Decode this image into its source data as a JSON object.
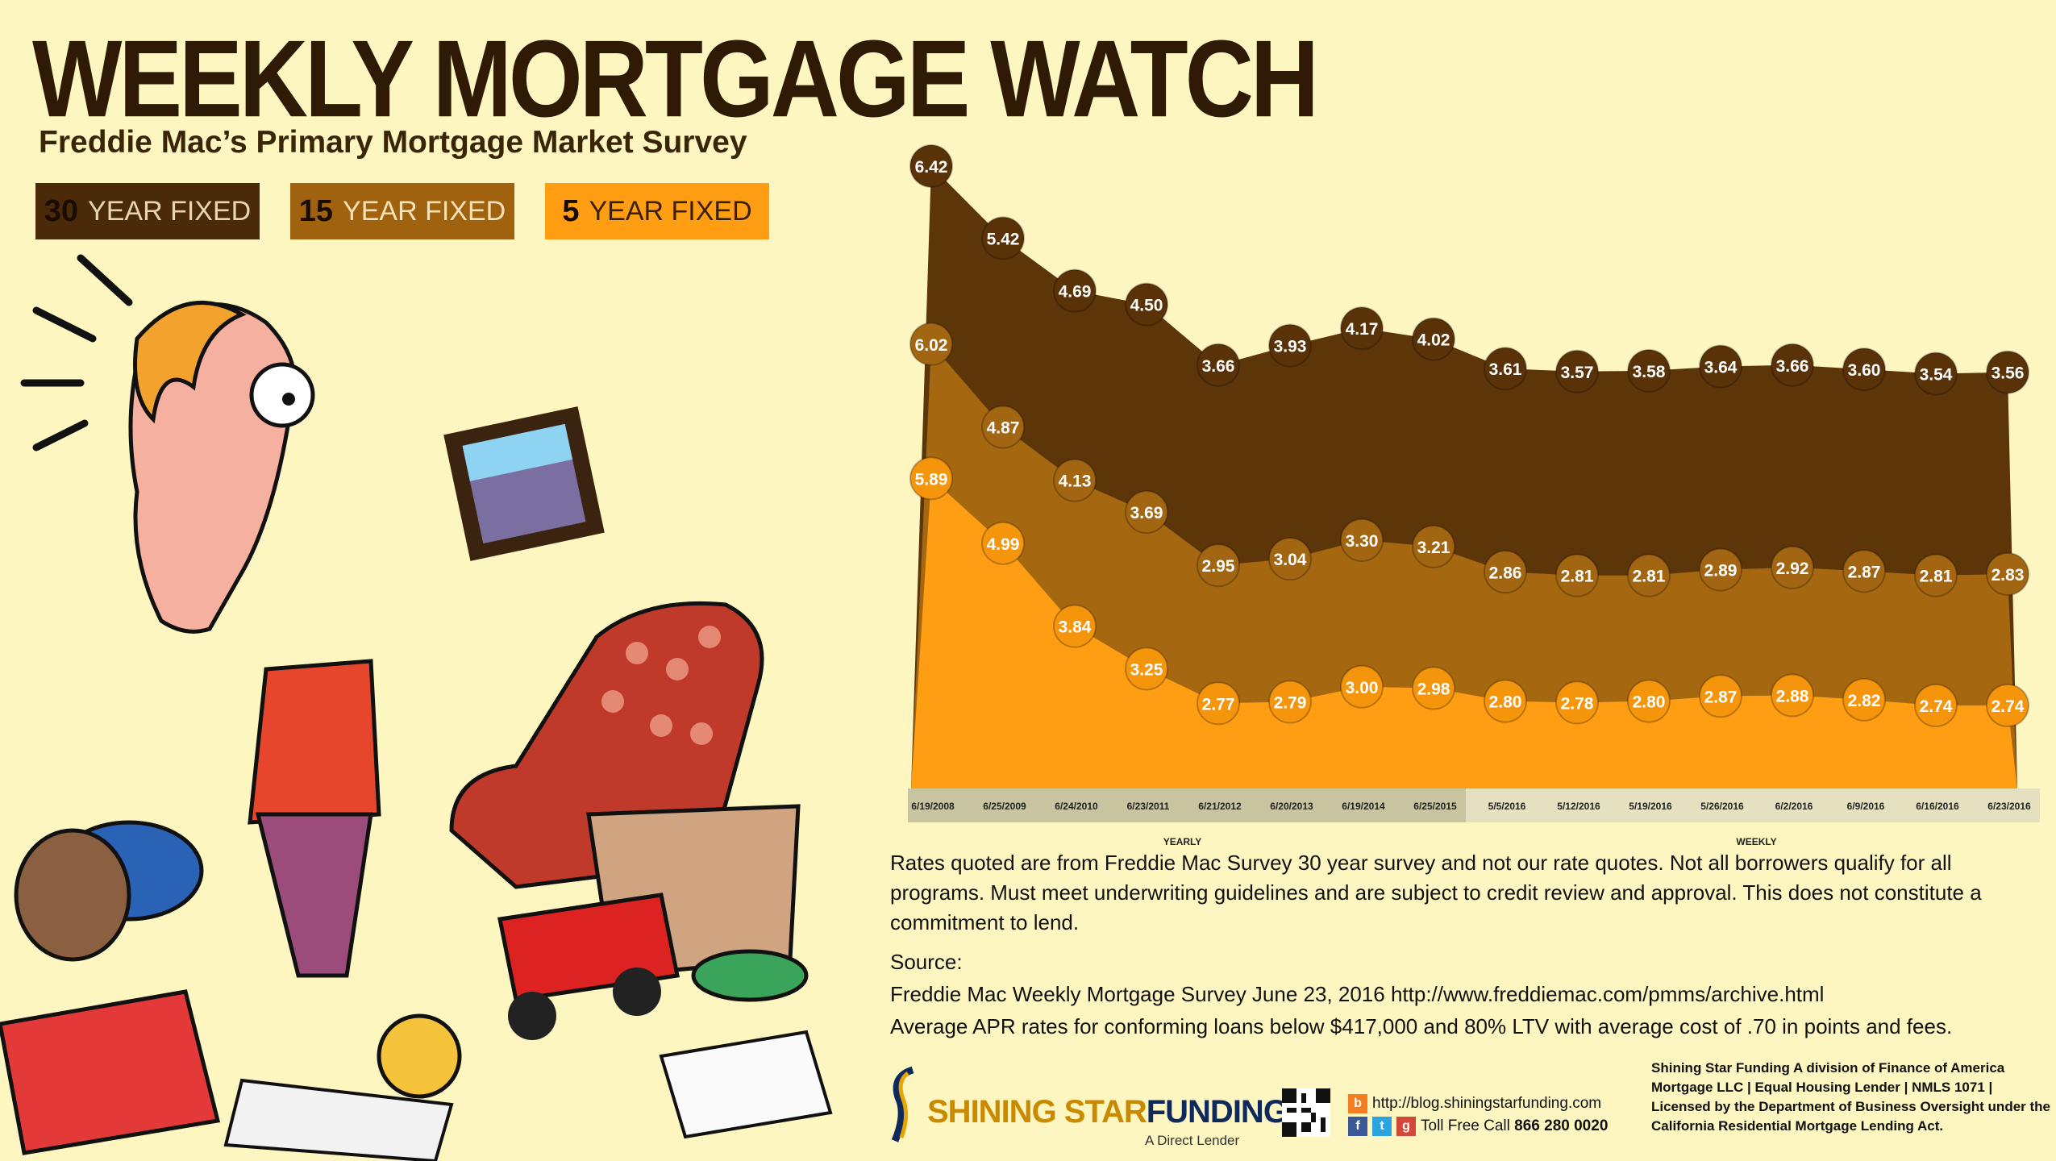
{
  "header": {
    "title": "WEEKLY MORTGAGE WATCH",
    "subtitle": "Freddie Mac’s Primary Mortgage Market Survey"
  },
  "legend": [
    {
      "num": "30",
      "label": "YEAR FIXED",
      "color": "#4a2a08"
    },
    {
      "num": "15",
      "label": "YEAR FIXED",
      "color": "#a0620e"
    },
    {
      "num": "5",
      "label": "YEAR FIXED",
      "color": "#ff9e12"
    }
  ],
  "chart_data": {
    "type": "area",
    "categories": [
      "6/19/2008",
      "6/25/2009",
      "6/24/2010",
      "6/23/2011",
      "6/21/2012",
      "6/20/2013",
      "6/19/2014",
      "6/25/2015",
      "5/5/2016",
      "5/12/2016",
      "5/19/2016",
      "5/26/2016",
      "6/2/2016",
      "6/9/2016",
      "6/16/2016",
      "6/23/2016"
    ],
    "group_labels": [
      {
        "label": "YEARLY",
        "span": [
          0,
          7
        ]
      },
      {
        "label": "WEEKLY",
        "span": [
          8,
          15
        ]
      }
    ],
    "series": [
      {
        "name": "30 YEAR FIXED",
        "color": "#5c3509",
        "labels": [
          "6.42",
          "5.42",
          "4.69",
          "4.50",
          "3.66",
          "3.93",
          "4.17",
          "4.02",
          "3.61",
          "3.57",
          "3.58",
          "3.64",
          "3.66",
          "3.60",
          "3.54",
          "3.56"
        ],
        "values": [
          6.42,
          5.42,
          4.69,
          4.5,
          3.66,
          3.93,
          4.17,
          4.02,
          3.61,
          3.57,
          3.58,
          3.64,
          3.66,
          3.6,
          3.54,
          3.56
        ]
      },
      {
        "name": "15 YEAR FIXED",
        "color": "#a56810",
        "labels": [
          "6.02",
          "4.87",
          "4.13",
          "3.69",
          "2.95",
          "3.04",
          "3.30",
          "3.21",
          "2.86",
          "2.81",
          "2.81",
          "2.89",
          "2.92",
          "2.87",
          "2.81",
          "2.83"
        ],
        "values": [
          6.02,
          4.87,
          4.13,
          3.69,
          2.95,
          3.04,
          3.3,
          3.21,
          2.86,
          2.81,
          2.81,
          2.89,
          2.92,
          2.87,
          2.81,
          2.83
        ]
      },
      {
        "name": "5 YEAR FIXED",
        "color": "#ff9e12",
        "labels": [
          "5.89",
          "4.99",
          "3.84",
          "3.25",
          "2.77",
          "2.79",
          "3.00",
          "2.98",
          "2.80",
          "2.78",
          "2.80",
          "2.87",
          "2.88",
          "2.82",
          "2.74",
          "2.74"
        ],
        "values": [
          5.89,
          4.99,
          3.84,
          3.25,
          2.77,
          2.79,
          3.0,
          2.98,
          2.8,
          2.78,
          2.8,
          2.87,
          2.88,
          2.82,
          2.74,
          2.74
        ]
      }
    ]
  },
  "disclaimer": "Rates quoted are from Freddie Mac Survey 30 year survey and not our rate quotes. Not all borrowers qualify for all programs. Must meet underwriting guidelines and are subject to credit review and approval. This does not constitute a commitment to lend.",
  "source": {
    "heading": "Source:",
    "line1": "Freddie Mac Weekly Mortgage Survey June 23, 2016 http://www.freddiemac.com/pmms/archive.html",
    "line2": "Average APR rates for conforming loans below $417,000 and 80% LTV with average cost of .70 in points and fees."
  },
  "footer": {
    "brand_a": "SHINING ",
    "brand_b": "STAR",
    "brand_c": "FUNDING",
    "brand_tagline": "A Direct Lender",
    "blog": "http://blog.shiningstarfunding.com",
    "tollfree_label": "Toll Free Call ",
    "tollfree_number": "866 280 0020",
    "legal": "Shining Star Funding A division of Finance of America Mortgage LLC | Equal Housing Lender | NMLS 1071 | Licensed by the Department of Business Oversight under the California Residential Mortgage Lending Act."
  },
  "colors": {
    "background": "#fdf6c0",
    "axis_band": "#c8c4a0",
    "label_text": "#ffffff"
  }
}
